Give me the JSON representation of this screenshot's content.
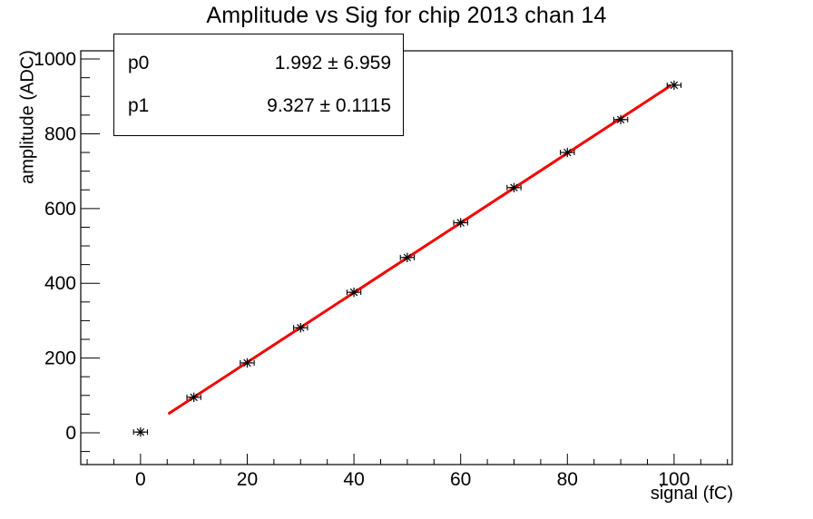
{
  "title": "Amplitude vs Sig for chip 2013 chan 14",
  "stats_box": {
    "rows": [
      {
        "name": "p0",
        "value": "1.992 ± 6.959"
      },
      {
        "name": "p1",
        "value": "9.327 ± 0.1115"
      }
    ]
  },
  "chart_data": {
    "type": "scatter",
    "title": "Amplitude vs Sig for chip 2013 chan 14",
    "xlabel": "signal (fC)",
    "ylabel": "amplitude (ADC)",
    "x": [
      0,
      10,
      20,
      30,
      40,
      50,
      60,
      70,
      80,
      90,
      100
    ],
    "y": [
      2,
      95,
      187,
      281,
      376,
      469,
      562,
      656,
      750,
      838,
      930
    ],
    "x_err": 1.3,
    "marker": "asterisk",
    "grid": false,
    "legend": "none",
    "xlim": [
      -11.2,
      110.9
    ],
    "ylim": [
      -85,
      1022
    ],
    "x_ticks": {
      "major": [
        0,
        20,
        40,
        60,
        80,
        100
      ],
      "minor_step": 5
    },
    "y_ticks": {
      "major": [
        0,
        200,
        400,
        600,
        800,
        1000
      ],
      "minor_step": 50
    },
    "fit": {
      "type": "linear",
      "p0": 1.992,
      "p1": 9.327,
      "x_start": 5.4,
      "x_end": 99.2,
      "color": "#f40000",
      "width": 3
    },
    "colors": {
      "axis": "#000000",
      "marker": "#000000",
      "background": "#ffffff"
    }
  }
}
